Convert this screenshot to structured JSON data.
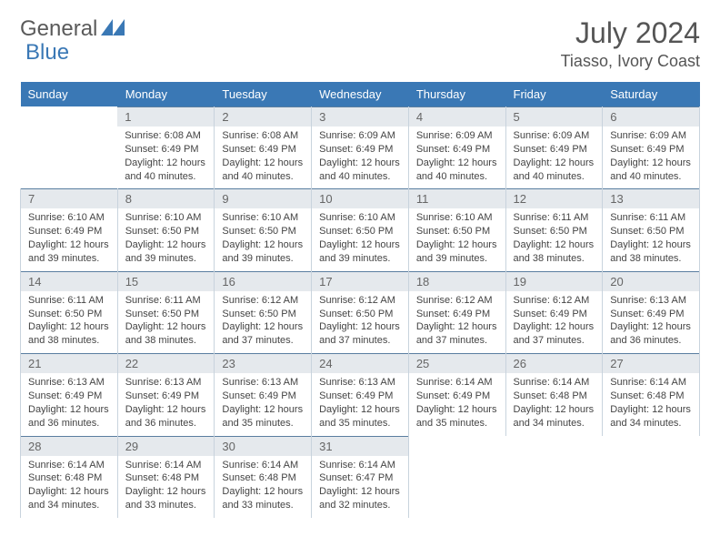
{
  "logo": {
    "text1": "General",
    "text2": "Blue"
  },
  "header": {
    "month": "July 2024",
    "location": "Tiasso, Ivory Coast"
  },
  "day_headers": [
    "Sunday",
    "Monday",
    "Tuesday",
    "Wednesday",
    "Thursday",
    "Friday",
    "Saturday"
  ],
  "colors": {
    "header_bg": "#3a78b5",
    "header_text": "#ffffff",
    "daynum_bg": "#e5e9ed",
    "daynum_border_top": "#5a7ea0",
    "cell_border": "#c8d3dd",
    "body_text": "#444444",
    "logo_blue": "#3a78b5"
  },
  "fonts": {
    "title_size": 32,
    "location_size": 18,
    "header_size": 13,
    "daynum_size": 13,
    "body_size": 11
  },
  "weeks": [
    [
      null,
      {
        "n": "1",
        "sr": "Sunrise: 6:08 AM",
        "ss": "Sunset: 6:49 PM",
        "d1": "Daylight: 12 hours",
        "d2": "and 40 minutes."
      },
      {
        "n": "2",
        "sr": "Sunrise: 6:08 AM",
        "ss": "Sunset: 6:49 PM",
        "d1": "Daylight: 12 hours",
        "d2": "and 40 minutes."
      },
      {
        "n": "3",
        "sr": "Sunrise: 6:09 AM",
        "ss": "Sunset: 6:49 PM",
        "d1": "Daylight: 12 hours",
        "d2": "and 40 minutes."
      },
      {
        "n": "4",
        "sr": "Sunrise: 6:09 AM",
        "ss": "Sunset: 6:49 PM",
        "d1": "Daylight: 12 hours",
        "d2": "and 40 minutes."
      },
      {
        "n": "5",
        "sr": "Sunrise: 6:09 AM",
        "ss": "Sunset: 6:49 PM",
        "d1": "Daylight: 12 hours",
        "d2": "and 40 minutes."
      },
      {
        "n": "6",
        "sr": "Sunrise: 6:09 AM",
        "ss": "Sunset: 6:49 PM",
        "d1": "Daylight: 12 hours",
        "d2": "and 40 minutes."
      }
    ],
    [
      {
        "n": "7",
        "sr": "Sunrise: 6:10 AM",
        "ss": "Sunset: 6:49 PM",
        "d1": "Daylight: 12 hours",
        "d2": "and 39 minutes."
      },
      {
        "n": "8",
        "sr": "Sunrise: 6:10 AM",
        "ss": "Sunset: 6:50 PM",
        "d1": "Daylight: 12 hours",
        "d2": "and 39 minutes."
      },
      {
        "n": "9",
        "sr": "Sunrise: 6:10 AM",
        "ss": "Sunset: 6:50 PM",
        "d1": "Daylight: 12 hours",
        "d2": "and 39 minutes."
      },
      {
        "n": "10",
        "sr": "Sunrise: 6:10 AM",
        "ss": "Sunset: 6:50 PM",
        "d1": "Daylight: 12 hours",
        "d2": "and 39 minutes."
      },
      {
        "n": "11",
        "sr": "Sunrise: 6:10 AM",
        "ss": "Sunset: 6:50 PM",
        "d1": "Daylight: 12 hours",
        "d2": "and 39 minutes."
      },
      {
        "n": "12",
        "sr": "Sunrise: 6:11 AM",
        "ss": "Sunset: 6:50 PM",
        "d1": "Daylight: 12 hours",
        "d2": "and 38 minutes."
      },
      {
        "n": "13",
        "sr": "Sunrise: 6:11 AM",
        "ss": "Sunset: 6:50 PM",
        "d1": "Daylight: 12 hours",
        "d2": "and 38 minutes."
      }
    ],
    [
      {
        "n": "14",
        "sr": "Sunrise: 6:11 AM",
        "ss": "Sunset: 6:50 PM",
        "d1": "Daylight: 12 hours",
        "d2": "and 38 minutes."
      },
      {
        "n": "15",
        "sr": "Sunrise: 6:11 AM",
        "ss": "Sunset: 6:50 PM",
        "d1": "Daylight: 12 hours",
        "d2": "and 38 minutes."
      },
      {
        "n": "16",
        "sr": "Sunrise: 6:12 AM",
        "ss": "Sunset: 6:50 PM",
        "d1": "Daylight: 12 hours",
        "d2": "and 37 minutes."
      },
      {
        "n": "17",
        "sr": "Sunrise: 6:12 AM",
        "ss": "Sunset: 6:50 PM",
        "d1": "Daylight: 12 hours",
        "d2": "and 37 minutes."
      },
      {
        "n": "18",
        "sr": "Sunrise: 6:12 AM",
        "ss": "Sunset: 6:49 PM",
        "d1": "Daylight: 12 hours",
        "d2": "and 37 minutes."
      },
      {
        "n": "19",
        "sr": "Sunrise: 6:12 AM",
        "ss": "Sunset: 6:49 PM",
        "d1": "Daylight: 12 hours",
        "d2": "and 37 minutes."
      },
      {
        "n": "20",
        "sr": "Sunrise: 6:13 AM",
        "ss": "Sunset: 6:49 PM",
        "d1": "Daylight: 12 hours",
        "d2": "and 36 minutes."
      }
    ],
    [
      {
        "n": "21",
        "sr": "Sunrise: 6:13 AM",
        "ss": "Sunset: 6:49 PM",
        "d1": "Daylight: 12 hours",
        "d2": "and 36 minutes."
      },
      {
        "n": "22",
        "sr": "Sunrise: 6:13 AM",
        "ss": "Sunset: 6:49 PM",
        "d1": "Daylight: 12 hours",
        "d2": "and 36 minutes."
      },
      {
        "n": "23",
        "sr": "Sunrise: 6:13 AM",
        "ss": "Sunset: 6:49 PM",
        "d1": "Daylight: 12 hours",
        "d2": "and 35 minutes."
      },
      {
        "n": "24",
        "sr": "Sunrise: 6:13 AM",
        "ss": "Sunset: 6:49 PM",
        "d1": "Daylight: 12 hours",
        "d2": "and 35 minutes."
      },
      {
        "n": "25",
        "sr": "Sunrise: 6:14 AM",
        "ss": "Sunset: 6:49 PM",
        "d1": "Daylight: 12 hours",
        "d2": "and 35 minutes."
      },
      {
        "n": "26",
        "sr": "Sunrise: 6:14 AM",
        "ss": "Sunset: 6:48 PM",
        "d1": "Daylight: 12 hours",
        "d2": "and 34 minutes."
      },
      {
        "n": "27",
        "sr": "Sunrise: 6:14 AM",
        "ss": "Sunset: 6:48 PM",
        "d1": "Daylight: 12 hours",
        "d2": "and 34 minutes."
      }
    ],
    [
      {
        "n": "28",
        "sr": "Sunrise: 6:14 AM",
        "ss": "Sunset: 6:48 PM",
        "d1": "Daylight: 12 hours",
        "d2": "and 34 minutes."
      },
      {
        "n": "29",
        "sr": "Sunrise: 6:14 AM",
        "ss": "Sunset: 6:48 PM",
        "d1": "Daylight: 12 hours",
        "d2": "and 33 minutes."
      },
      {
        "n": "30",
        "sr": "Sunrise: 6:14 AM",
        "ss": "Sunset: 6:48 PM",
        "d1": "Daylight: 12 hours",
        "d2": "and 33 minutes."
      },
      {
        "n": "31",
        "sr": "Sunrise: 6:14 AM",
        "ss": "Sunset: 6:47 PM",
        "d1": "Daylight: 12 hours",
        "d2": "and 32 minutes."
      },
      null,
      null,
      null
    ]
  ]
}
